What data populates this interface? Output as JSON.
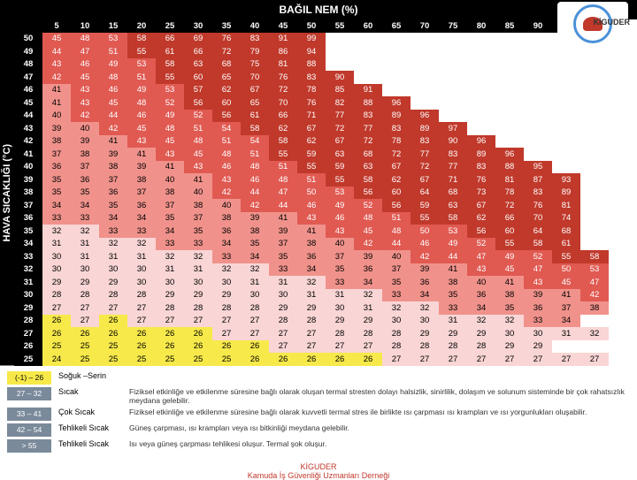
{
  "header_title": "BAĞIL NEM (%)",
  "y_axis_label": "HAVA SICAKLIĞI (°C)",
  "logo_text": "KİGUDER",
  "humidity_cols": [
    5,
    10,
    15,
    20,
    25,
    30,
    35,
    40,
    45,
    50,
    55,
    60,
    65,
    70,
    75,
    80,
    85,
    90,
    95,
    100
  ],
  "temp_rows": [
    50,
    49,
    48,
    47,
    46,
    45,
    44,
    43,
    42,
    41,
    40,
    39,
    38,
    37,
    36,
    35,
    34,
    33,
    32,
    31,
    30,
    29,
    28,
    27,
    26,
    25
  ],
  "cells": {
    "50": [
      45,
      48,
      53,
      58,
      66,
      69,
      76,
      83,
      91,
      99
    ],
    "49": [
      44,
      47,
      51,
      55,
      61,
      66,
      72,
      79,
      86,
      94
    ],
    "48": [
      43,
      46,
      49,
      53,
      58,
      63,
      68,
      75,
      81,
      88
    ],
    "47": [
      42,
      45,
      48,
      51,
      55,
      60,
      65,
      70,
      76,
      83,
      90
    ],
    "46": [
      41,
      43,
      46,
      49,
      53,
      57,
      62,
      67,
      72,
      78,
      85,
      91
    ],
    "45": [
      41,
      43,
      45,
      48,
      52,
      56,
      60,
      65,
      70,
      76,
      82,
      88,
      96
    ],
    "44": [
      40,
      42,
      44,
      46,
      49,
      52,
      56,
      61,
      66,
      71,
      77,
      83,
      89,
      96
    ],
    "43": [
      39,
      40,
      42,
      45,
      48,
      51,
      54,
      58,
      62,
      67,
      72,
      77,
      83,
      89,
      97
    ],
    "42": [
      38,
      39,
      41,
      43,
      45,
      48,
      51,
      54,
      58,
      62,
      67,
      72,
      78,
      83,
      90,
      96
    ],
    "41": [
      37,
      38,
      39,
      41,
      43,
      45,
      48,
      51,
      55,
      59,
      63,
      68,
      72,
      77,
      83,
      89,
      96
    ],
    "40": [
      36,
      37,
      38,
      39,
      41,
      43,
      46,
      48,
      51,
      55,
      59,
      63,
      67,
      72,
      77,
      83,
      88,
      95
    ],
    "39": [
      35,
      36,
      37,
      38,
      40,
      41,
      43,
      46,
      48,
      51,
      55,
      58,
      62,
      67,
      71,
      76,
      81,
      87,
      93
    ],
    "38": [
      35,
      35,
      36,
      37,
      38,
      40,
      42,
      44,
      47,
      50,
      53,
      56,
      60,
      64,
      68,
      73,
      78,
      83,
      89
    ],
    "37": [
      34,
      34,
      35,
      36,
      37,
      38,
      40,
      42,
      44,
      46,
      49,
      52,
      56,
      59,
      63,
      67,
      72,
      76,
      81
    ],
    "36": [
      33,
      33,
      34,
      34,
      35,
      37,
      38,
      39,
      41,
      43,
      46,
      48,
      51,
      55,
      58,
      62,
      66,
      70,
      74
    ],
    "35": [
      32,
      32,
      33,
      33,
      34,
      35,
      36,
      38,
      39,
      41,
      43,
      45,
      48,
      50,
      53,
      56,
      60,
      64,
      68
    ],
    "34": [
      31,
      31,
      32,
      32,
      33,
      33,
      34,
      35,
      37,
      38,
      40,
      42,
      44,
      46,
      49,
      52,
      55,
      58,
      61
    ],
    "33": [
      30,
      31,
      31,
      31,
      32,
      32,
      33,
      34,
      35,
      36,
      37,
      39,
      40,
      42,
      44,
      47,
      49,
      52,
      55,
      58
    ],
    "32": [
      30,
      30,
      30,
      30,
      31,
      31,
      32,
      32,
      33,
      34,
      35,
      36,
      37,
      39,
      41,
      43,
      45,
      47,
      50,
      53
    ],
    "31": [
      29,
      29,
      29,
      30,
      30,
      30,
      30,
      31,
      31,
      32,
      33,
      34,
      35,
      36,
      38,
      40,
      41,
      43,
      45,
      47
    ],
    "30": [
      28,
      28,
      28,
      28,
      29,
      29,
      29,
      30,
      30,
      31,
      31,
      32,
      33,
      34,
      35,
      36,
      38,
      39,
      41,
      42
    ],
    "29": [
      27,
      27,
      27,
      27,
      28,
      28,
      28,
      28,
      29,
      29,
      30,
      31,
      32,
      32,
      33,
      34,
      35,
      36,
      37,
      38
    ],
    "28": [
      26,
      27,
      26,
      27,
      27,
      27,
      27,
      27,
      28,
      28,
      29,
      29,
      30,
      30,
      31,
      32,
      32,
      33,
      34
    ],
    "27": [
      26,
      26,
      26,
      26,
      26,
      26,
      27,
      27,
      27,
      27,
      28,
      28,
      28,
      29,
      29,
      29,
      30,
      30,
      31,
      32
    ],
    "26": [
      25,
      25,
      25,
      26,
      26,
      26,
      26,
      26,
      27,
      27,
      27,
      27,
      28,
      28,
      28,
      28,
      29,
      29
    ],
    "25": [
      24,
      25,
      25,
      25,
      25,
      25,
      25,
      26,
      26,
      26,
      26,
      26,
      27,
      27,
      27,
      27,
      27,
      27,
      27,
      27
    ]
  },
  "bands": [
    {
      "min": -1,
      "max": 26,
      "color": "#f7e94a"
    },
    {
      "min": 27,
      "max": 32,
      "color": "#f9d5d5"
    },
    {
      "min": 33,
      "max": 41,
      "color": "#f0928b"
    },
    {
      "min": 42,
      "max": 54,
      "color": "#e05a52"
    },
    {
      "min": 55,
      "max": 999,
      "color": "#c0392b"
    }
  ],
  "legend": [
    {
      "range": "(-1) – 26",
      "label": "Soğuk –Serin",
      "desc": "",
      "bg": "#f7e94a",
      "fg": "#000"
    },
    {
      "range": "27 – 32",
      "label": "Sıcak",
      "desc": "Fiziksel etkinliğe ve etkilenme süresine bağlı olarak oluşan termal stresten dolayı halsizlik, sinirlilik, dolaşım ve solunum sisteminde bir çok rahatsızlık meydana gelebilir.",
      "bg": "#7a8a9a",
      "fg": "#fff"
    },
    {
      "range": "33 – 41",
      "label": "Çok Sıcak",
      "desc": "Fiziksel etkinliğe ve etkilenme süresine bağlı olarak kuvvetli termal stres ile birlikte ısı çarpması ısı krampları ve ısı yorgunlukları oluşabilir.",
      "bg": "#7a8a9a",
      "fg": "#fff"
    },
    {
      "range": "42 – 54",
      "label": "Tehlikeli Sıcak",
      "desc": "Güneş çarpması, ısı krampları veya ısı bitkinliği meydana gelebilir.",
      "bg": "#7a8a9a",
      "fg": "#fff"
    },
    {
      "range": "> 55",
      "label": "Tehlikeli Sıcak",
      "desc": "Isı veya güneş çarpması tehlikesi oluşur. Termal şok oluşur.",
      "bg": "#7a8a9a",
      "fg": "#fff"
    }
  ],
  "footer_line1": "KİGUDER",
  "footer_line2": "Kamuda İş Güvenliği Uzmanları Derneği",
  "header_bg": "#000000",
  "text_white": "#ffffff"
}
